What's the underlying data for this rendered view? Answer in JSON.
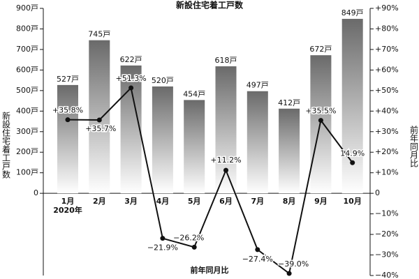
{
  "chart_data": {
    "type": "bar",
    "title": "新設住宅着工戸数",
    "y_label": "新設住宅着工戸数",
    "y2_label": "前年同月比",
    "x_label": "前年同月比",
    "annotation": "2020年",
    "categories": [
      "1月",
      "2月",
      "3月",
      "4月",
      "5月",
      "6月",
      "7月",
      "8月",
      "9月",
      "10月"
    ],
    "series": [
      {
        "type": "bar",
        "color": "#707070",
        "values": [
          527,
          745,
          622,
          520,
          454,
          618,
          497,
          412,
          672,
          849
        ],
        "value_labels": [
          "527戸",
          "745戸",
          "622戸",
          "520戸",
          "454戸",
          "618戸",
          "497戸",
          "412戸",
          "672戸",
          "849戸"
        ]
      },
      {
        "type": "line",
        "axis": "y2",
        "color": "#111111",
        "values": [
          35.8,
          35.7,
          51.3,
          -21.9,
          -26.2,
          11.2,
          -27.4,
          -39.0,
          35.5,
          14.9
        ],
        "value_labels": [
          "+35.8%",
          "+35.7%",
          "+51.3%",
          "−21.9%",
          "−26.2%",
          "+11.2%",
          "−27.4%",
          "−39.0%",
          "+35.5%",
          "14.9%"
        ]
      }
    ],
    "ylim": [
      -400,
      900
    ],
    "yticks": [
      0,
      {
        "value": 100,
        "label": "100戸"
      },
      {
        "value": 200,
        "label": "200戸"
      },
      {
        "value": 300,
        "label": "300戸"
      },
      {
        "value": 400,
        "label": "400戸"
      },
      {
        "value": 500,
        "label": "500戸"
      },
      {
        "value": 600,
        "label": "600戸"
      },
      {
        "value": 700,
        "label": "700戸"
      },
      {
        "value": 800,
        "label": "800戸"
      },
      {
        "value": 900,
        "label": "900戸"
      }
    ],
    "y2lim": [
      -40,
      90
    ],
    "y2ticks": [
      {
        "value": 90,
        "label": "+90%"
      },
      {
        "value": 80,
        "label": "+80%"
      },
      {
        "value": 70,
        "label": "+70%"
      },
      {
        "value": 60,
        "label": "+60%"
      },
      {
        "value": 50,
        "label": "+50%"
      },
      {
        "value": 40,
        "label": "+40%"
      },
      {
        "value": 30,
        "label": "+30%"
      },
      {
        "value": 20,
        "label": "+20%"
      },
      {
        "value": 10,
        "label": "+10%"
      },
      0,
      {
        "value": -10,
        "label": "−10%"
      },
      {
        "value": -20,
        "label": "−20%"
      },
      {
        "value": -30,
        "label": "−30%"
      },
      {
        "value": -40,
        "label": "−40%"
      }
    ]
  }
}
